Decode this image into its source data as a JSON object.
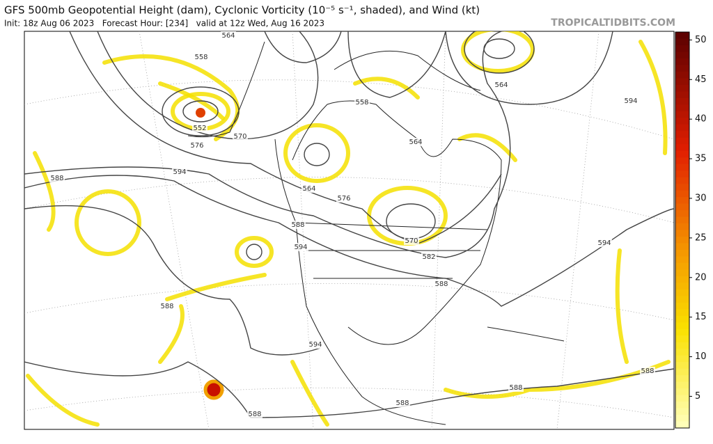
{
  "header": {
    "title": "GFS 500mb Geopotential Height (dam), Cyclonic Vorticity (10⁻⁵ s⁻¹, shaded), and Wind (kt)",
    "info": "Init: 18z Aug 06 2023   Forecast Hour: [234]   valid at 12z Wed, Aug 16 2023",
    "source": "TROPICALTIDBITS.COM"
  },
  "colorbar": {
    "clim": [
      1,
      51
    ],
    "ticks": [
      5,
      10,
      15,
      20,
      25,
      30,
      35,
      40,
      45,
      50
    ]
  },
  "contour_labels": [
    "564",
    "558",
    "552",
    "570",
    "576",
    "594",
    "588",
    "558",
    "564",
    "564",
    "576",
    "588",
    "594",
    "570",
    "582",
    "588",
    "564",
    "594",
    "594",
    "588",
    "594",
    "588",
    "588",
    "588",
    "588"
  ]
}
